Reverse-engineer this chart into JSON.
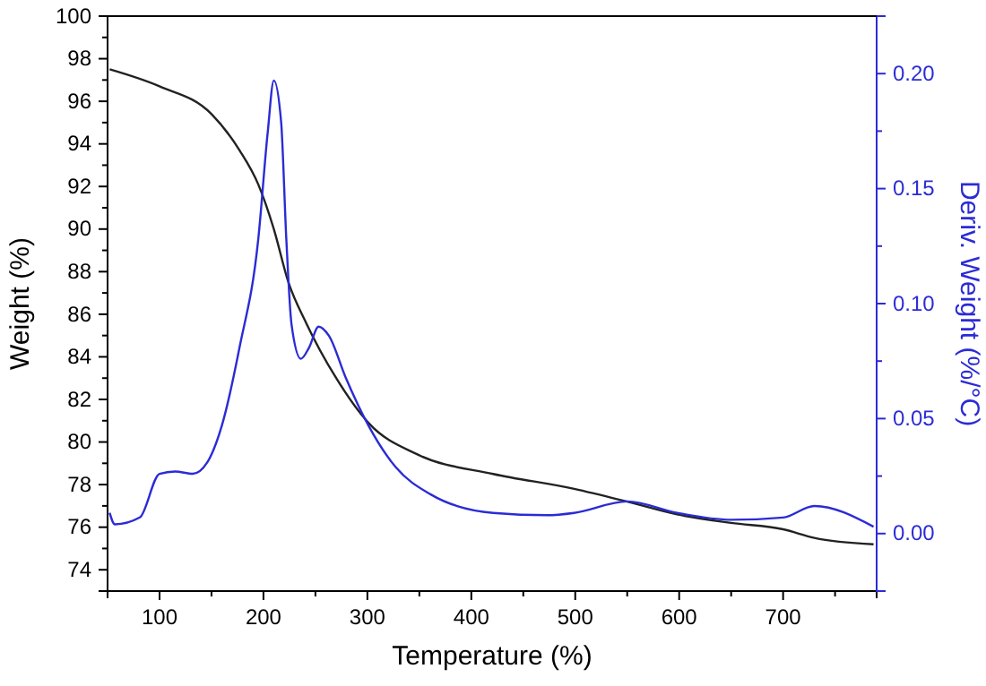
{
  "chart_data": {
    "type": "line",
    "xlabel": "Temperature (%)",
    "ylabel": "Weight (%)",
    "y2label": "Deriv. Weight (%/°C)",
    "xlim": [
      50,
      790
    ],
    "xticks": [
      {
        "value": 50,
        "label": null
      },
      100,
      {
        "value": 150,
        "label": null
      },
      200,
      {
        "value": 250,
        "label": null
      },
      300,
      {
        "value": 350,
        "label": null
      },
      400,
      {
        "value": 450,
        "label": null
      },
      500,
      {
        "value": 550,
        "label": null
      },
      600,
      {
        "value": 650,
        "label": null
      },
      700,
      {
        "value": 750,
        "label": null
      }
    ],
    "ylim": [
      73,
      100
    ],
    "yticks": [
      {
        "value": 73,
        "label": null
      },
      74,
      {
        "value": 75,
        "label": null
      },
      76,
      {
        "value": 77,
        "label": null
      },
      78,
      {
        "value": 79,
        "label": null
      },
      80,
      {
        "value": 81,
        "label": null
      },
      82,
      {
        "value": 83,
        "label": null
      },
      84,
      {
        "value": 85,
        "label": null
      },
      86,
      {
        "value": 87,
        "label": null
      },
      88,
      {
        "value": 89,
        "label": null
      },
      90,
      {
        "value": 91,
        "label": null
      },
      92,
      {
        "value": 93,
        "label": null
      },
      94,
      {
        "value": 95,
        "label": null
      },
      96,
      {
        "value": 97,
        "label": null
      },
      98,
      {
        "value": 99,
        "label": null
      },
      100
    ],
    "y2lim": [
      -0.025,
      0.225
    ],
    "y2ticks": [
      {
        "value": 0,
        "label": "0.00"
      },
      {
        "value": 0.025,
        "label": null
      },
      {
        "value": 0.05,
        "label": "0.05"
      },
      {
        "value": 0.075,
        "label": null
      },
      {
        "value": 0.1,
        "label": "0.10"
      },
      {
        "value": 0.125,
        "label": null
      },
      {
        "value": 0.15,
        "label": "0.15"
      },
      {
        "value": 0.175,
        "label": null
      },
      {
        "value": 0.2,
        "label": "0.20"
      }
    ],
    "grid": false,
    "marker": "none",
    "line_style": "solid",
    "series": [
      {
        "color": "#222222",
        "x": [
          52,
          100,
          150,
          177,
          195,
          210,
          224,
          241,
          270,
          301,
          349,
          421,
          499,
          550,
          598,
          650,
          700,
          730,
          787
        ],
        "values": [
          97.5,
          96.7,
          95.4,
          93.7,
          92.1,
          90.0,
          87.5,
          85.6,
          83.0,
          80.9,
          79.4,
          78.5,
          77.8,
          77.2,
          76.6,
          76.2,
          75.9,
          75.5,
          75.2
        ]
      },
      {
        "color": "#2b2bd6",
        "axis": "y2",
        "x": [
          52,
          57,
          81,
          100,
          115,
          132,
          146,
          160,
          177,
          195,
          204,
          210,
          217,
          222,
          227,
          236,
          244,
          253,
          263,
          279,
          301,
          327,
          361,
          421,
          473,
          499,
          550,
          598,
          650,
          700,
          730,
          787
        ],
        "values": [
          0.009,
          0.004,
          0.007,
          0.026,
          0.027,
          0.026,
          0.031,
          0.047,
          0.081,
          0.128,
          0.174,
          0.197,
          0.179,
          0.128,
          0.091,
          0.076,
          0.081,
          0.09,
          0.086,
          0.068,
          0.047,
          0.029,
          0.017,
          0.009,
          0.008,
          0.009,
          0.014,
          0.009,
          0.006,
          0.007,
          0.012,
          0.003
        ]
      }
    ]
  }
}
